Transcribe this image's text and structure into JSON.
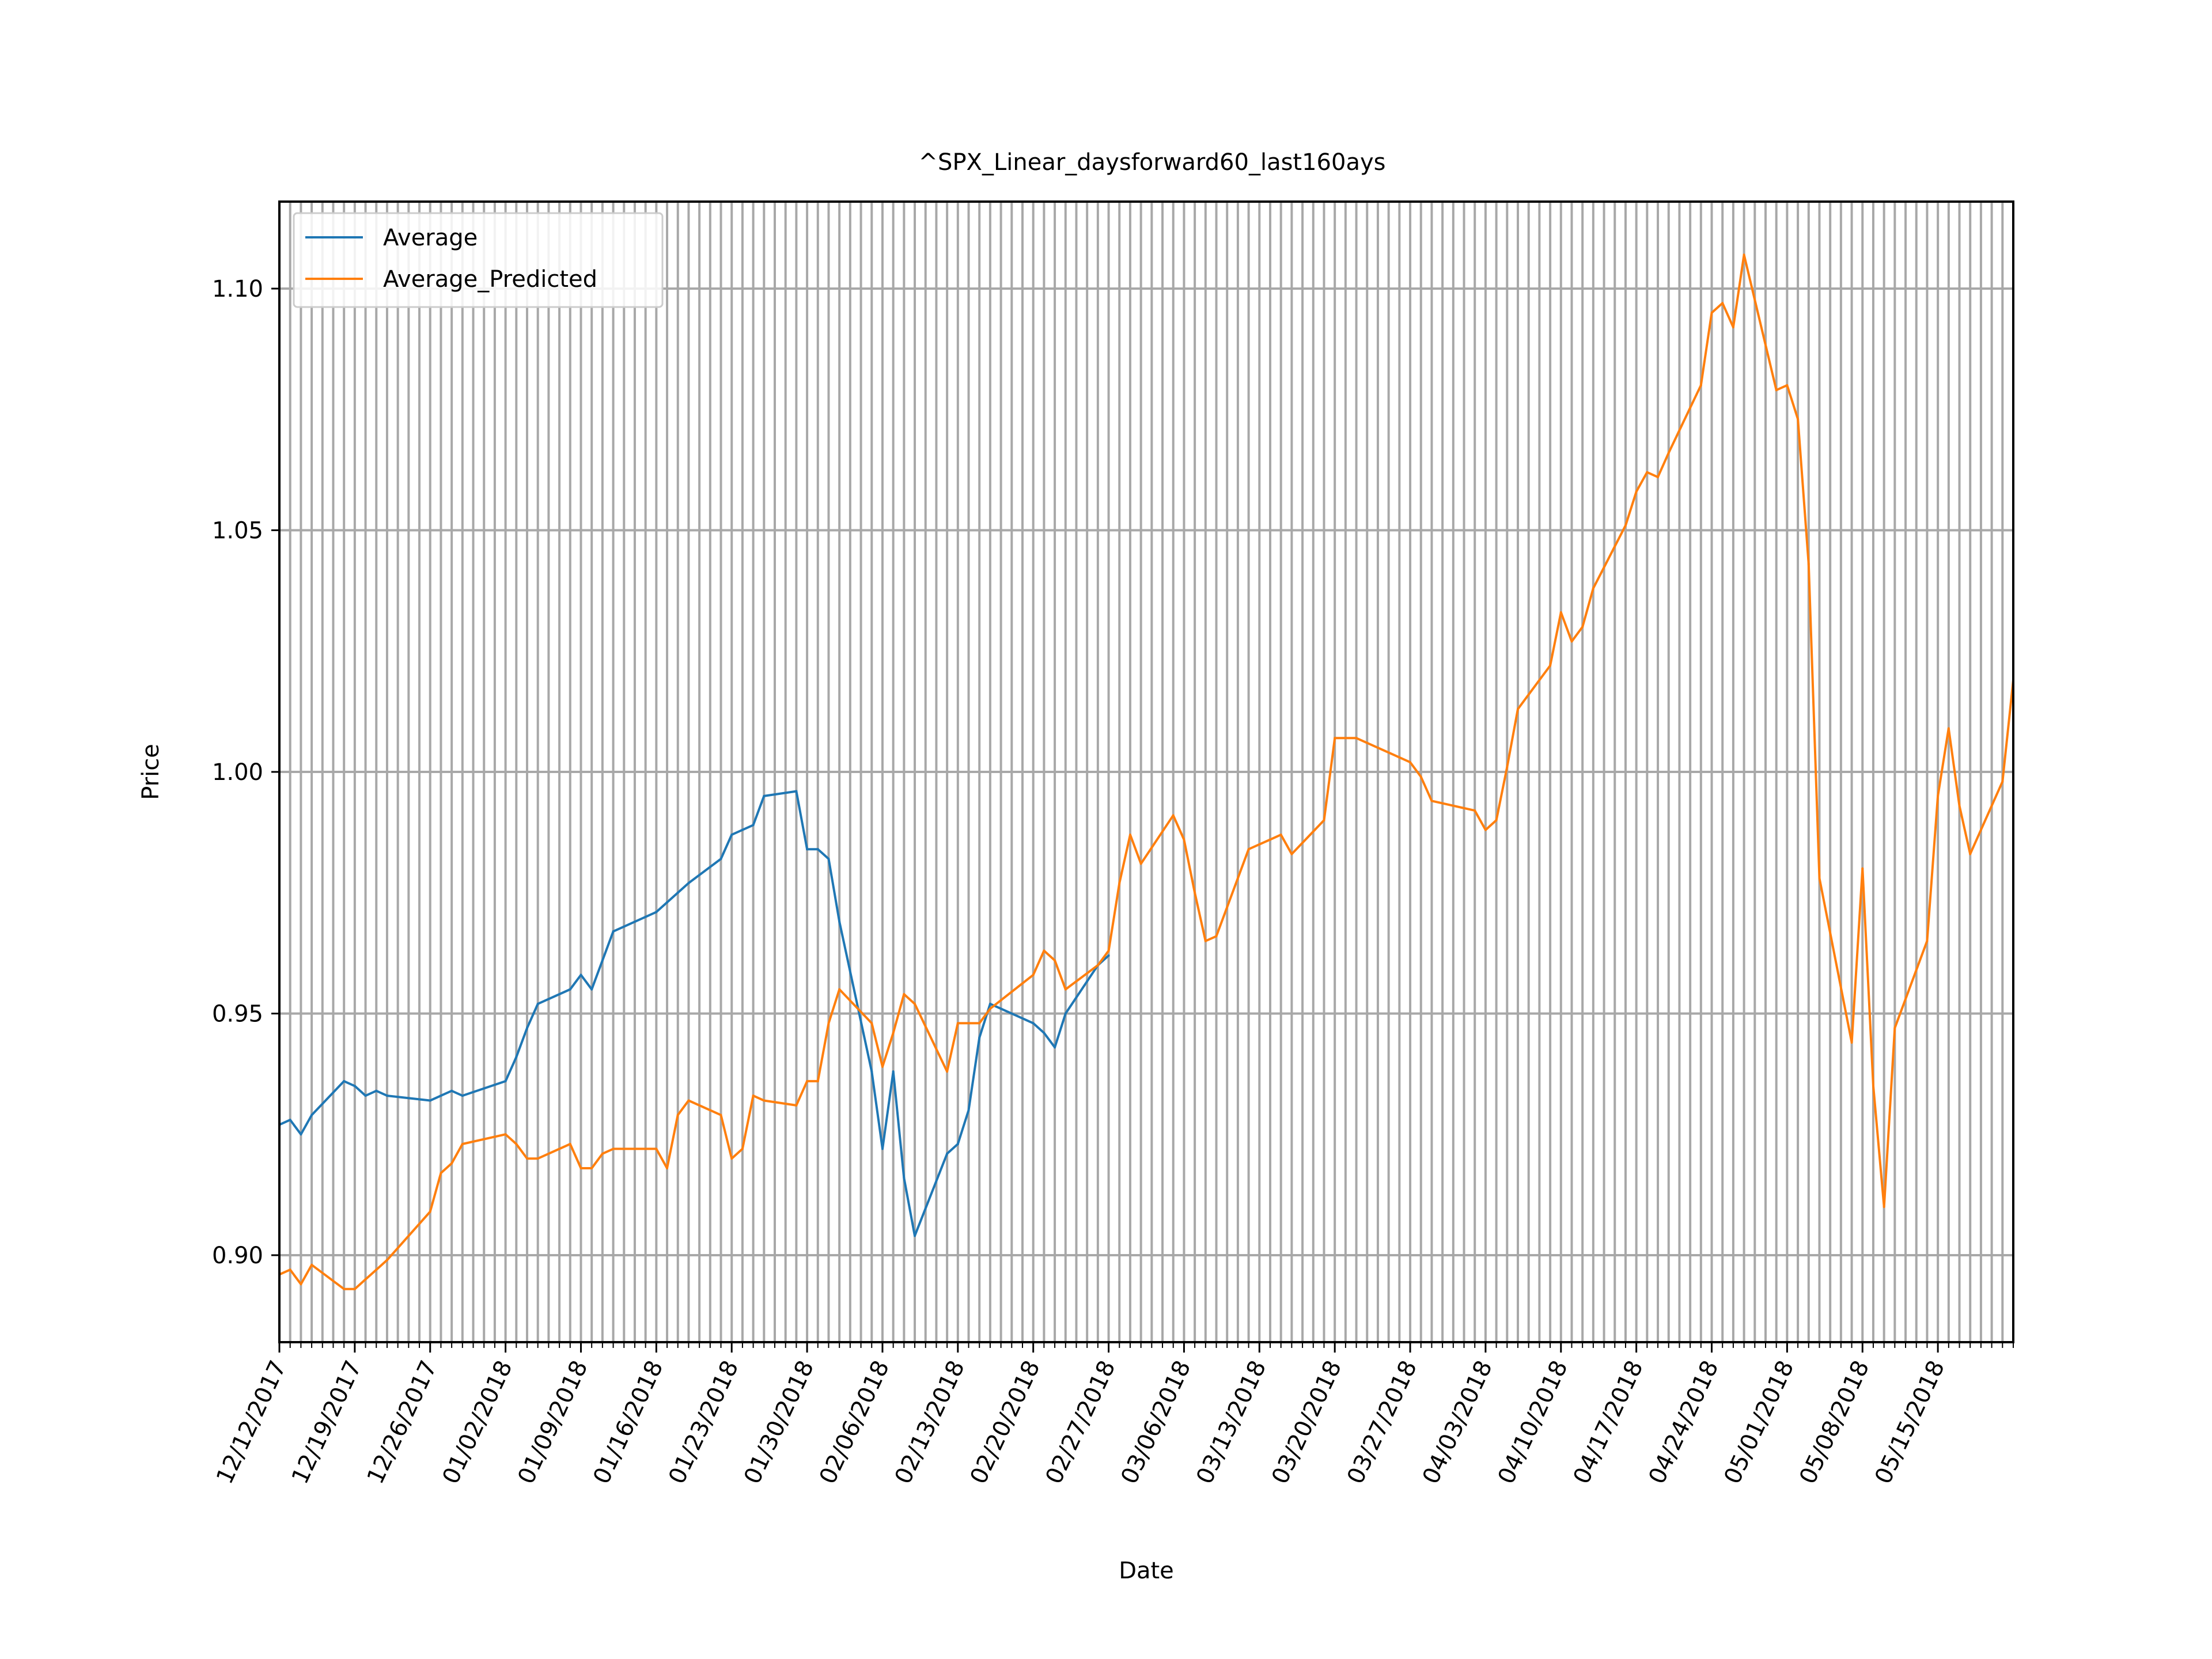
{
  "chart_data": {
    "type": "line",
    "title": "^SPX_Linear_daysforward60_last160ays",
    "xlabel": "Date",
    "ylabel": "Price",
    "x_range": [
      "12/12/2017",
      "05/22/2018"
    ],
    "ylim": [
      0.882,
      1.118
    ],
    "yticks": [
      0.9,
      0.95,
      1.0,
      1.05,
      1.1
    ],
    "ytick_labels": [
      "0.90",
      "0.95",
      "1.00",
      "1.05",
      "1.10"
    ],
    "xtick_labels": [
      "12/12/2017",
      "12/19/2017",
      "12/26/2017",
      "01/02/2018",
      "01/09/2018",
      "01/16/2018",
      "01/23/2018",
      "01/30/2018",
      "02/06/2018",
      "02/13/2018",
      "02/20/2018",
      "02/27/2018",
      "03/06/2018",
      "03/13/2018",
      "03/20/2018",
      "03/27/2018",
      "04/03/2018",
      "04/10/2018",
      "04/17/2018",
      "04/24/2018",
      "05/01/2018",
      "05/08/2018",
      "05/15/2018"
    ],
    "grid": "daily vertical minor lines and horizontal major lines",
    "legend_position": "top-left",
    "series": [
      {
        "name": "Average",
        "color": "#1f77b4",
        "points": [
          [
            "12/12/2017",
            0.927
          ],
          [
            "12/13/2017",
            0.928
          ],
          [
            "12/14/2017",
            0.925
          ],
          [
            "12/15/2017",
            0.929
          ],
          [
            "12/18/2017",
            0.936
          ],
          [
            "12/19/2017",
            0.935
          ],
          [
            "12/20/2017",
            0.933
          ],
          [
            "12/21/2017",
            0.934
          ],
          [
            "12/22/2017",
            0.933
          ],
          [
            "12/26/2017",
            0.932
          ],
          [
            "12/27/2017",
            0.933
          ],
          [
            "12/28/2017",
            0.934
          ],
          [
            "12/29/2017",
            0.933
          ],
          [
            "01/02/2018",
            0.936
          ],
          [
            "01/03/2018",
            0.941
          ],
          [
            "01/04/2018",
            0.947
          ],
          [
            "01/05/2018",
            0.952
          ],
          [
            "01/08/2018",
            0.955
          ],
          [
            "01/09/2018",
            0.958
          ],
          [
            "01/10/2018",
            0.955
          ],
          [
            "01/11/2018",
            0.961
          ],
          [
            "01/12/2018",
            0.967
          ],
          [
            "01/16/2018",
            0.971
          ],
          [
            "01/17/2018",
            0.973
          ],
          [
            "01/18/2018",
            0.975
          ],
          [
            "01/19/2018",
            0.977
          ],
          [
            "01/22/2018",
            0.982
          ],
          [
            "01/23/2018",
            0.987
          ],
          [
            "01/24/2018",
            0.988
          ],
          [
            "01/25/2018",
            0.989
          ],
          [
            "01/26/2018",
            0.995
          ],
          [
            "01/29/2018",
            0.996
          ],
          [
            "01/30/2018",
            0.984
          ],
          [
            "01/31/2018",
            0.984
          ],
          [
            "02/01/2018",
            0.982
          ],
          [
            "02/02/2018",
            0.969
          ],
          [
            "02/05/2018",
            0.938
          ],
          [
            "02/06/2018",
            0.922
          ],
          [
            "02/07/2018",
            0.938
          ],
          [
            "02/08/2018",
            0.916
          ],
          [
            "02/09/2018",
            0.904
          ],
          [
            "02/12/2018",
            0.921
          ],
          [
            "02/13/2018",
            0.923
          ],
          [
            "02/14/2018",
            0.93
          ],
          [
            "02/15/2018",
            0.945
          ],
          [
            "02/16/2018",
            0.952
          ],
          [
            "02/20/2018",
            0.948
          ],
          [
            "02/21/2018",
            0.946
          ],
          [
            "02/22/2018",
            0.943
          ],
          [
            "02/23/2018",
            0.95
          ],
          [
            "02/26/2018",
            0.96
          ],
          [
            "02/27/2018",
            0.962
          ]
        ]
      },
      {
        "name": "Average_Predicted",
        "color": "#ff7f0e",
        "points": [
          [
            "12/12/2017",
            0.896
          ],
          [
            "12/13/2017",
            0.897
          ],
          [
            "12/14/2017",
            0.894
          ],
          [
            "12/15/2017",
            0.898
          ],
          [
            "12/18/2017",
            0.893
          ],
          [
            "12/19/2017",
            0.893
          ],
          [
            "12/20/2017",
            0.895
          ],
          [
            "12/21/2017",
            0.897
          ],
          [
            "12/22/2017",
            0.899
          ],
          [
            "12/26/2017",
            0.909
          ],
          [
            "12/27/2017",
            0.917
          ],
          [
            "12/28/2017",
            0.919
          ],
          [
            "12/29/2017",
            0.923
          ],
          [
            "01/02/2018",
            0.925
          ],
          [
            "01/03/2018",
            0.923
          ],
          [
            "01/04/2018",
            0.92
          ],
          [
            "01/05/2018",
            0.92
          ],
          [
            "01/08/2018",
            0.923
          ],
          [
            "01/09/2018",
            0.918
          ],
          [
            "01/10/2018",
            0.918
          ],
          [
            "01/11/2018",
            0.921
          ],
          [
            "01/12/2018",
            0.922
          ],
          [
            "01/16/2018",
            0.922
          ],
          [
            "01/17/2018",
            0.918
          ],
          [
            "01/18/2018",
            0.929
          ],
          [
            "01/19/2018",
            0.932
          ],
          [
            "01/22/2018",
            0.929
          ],
          [
            "01/23/2018",
            0.92
          ],
          [
            "01/24/2018",
            0.922
          ],
          [
            "01/25/2018",
            0.933
          ],
          [
            "01/26/2018",
            0.932
          ],
          [
            "01/29/2018",
            0.931
          ],
          [
            "01/30/2018",
            0.936
          ],
          [
            "01/31/2018",
            0.936
          ],
          [
            "02/01/2018",
            0.948
          ],
          [
            "02/02/2018",
            0.955
          ],
          [
            "02/05/2018",
            0.948
          ],
          [
            "02/06/2018",
            0.939
          ],
          [
            "02/07/2018",
            0.946
          ],
          [
            "02/08/2018",
            0.954
          ],
          [
            "02/09/2018",
            0.952
          ],
          [
            "02/12/2018",
            0.938
          ],
          [
            "02/13/2018",
            0.948
          ],
          [
            "02/14/2018",
            0.948
          ],
          [
            "02/15/2018",
            0.948
          ],
          [
            "02/16/2018",
            0.951
          ],
          [
            "02/20/2018",
            0.958
          ],
          [
            "02/21/2018",
            0.963
          ],
          [
            "02/22/2018",
            0.961
          ],
          [
            "02/23/2018",
            0.955
          ],
          [
            "02/26/2018",
            0.96
          ],
          [
            "02/27/2018",
            0.963
          ],
          [
            "02/28/2018",
            0.977
          ],
          [
            "03/01/2018",
            0.987
          ],
          [
            "03/02/2018",
            0.981
          ],
          [
            "03/05/2018",
            0.991
          ],
          [
            "03/06/2018",
            0.986
          ],
          [
            "03/07/2018",
            0.975
          ],
          [
            "03/08/2018",
            0.965
          ],
          [
            "03/09/2018",
            0.966
          ],
          [
            "03/12/2018",
            0.984
          ],
          [
            "03/13/2018",
            0.985
          ],
          [
            "03/14/2018",
            0.986
          ],
          [
            "03/15/2018",
            0.987
          ],
          [
            "03/16/2018",
            0.983
          ],
          [
            "03/19/2018",
            0.99
          ],
          [
            "03/20/2018",
            1.007
          ],
          [
            "03/21/2018",
            1.007
          ],
          [
            "03/22/2018",
            1.007
          ],
          [
            "03/23/2018",
            1.006
          ],
          [
            "03/26/2018",
            1.003
          ],
          [
            "03/27/2018",
            1.002
          ],
          [
            "03/28/2018",
            0.999
          ],
          [
            "03/29/2018",
            0.994
          ],
          [
            "04/02/2018",
            0.992
          ],
          [
            "04/03/2018",
            0.988
          ],
          [
            "04/04/2018",
            0.99
          ],
          [
            "04/05/2018",
            1.001
          ],
          [
            "04/06/2018",
            1.013
          ],
          [
            "04/09/2018",
            1.022
          ],
          [
            "04/10/2018",
            1.033
          ],
          [
            "04/11/2018",
            1.027
          ],
          [
            "04/12/2018",
            1.03
          ],
          [
            "04/13/2018",
            1.038
          ],
          [
            "04/16/2018",
            1.051
          ],
          [
            "04/17/2018",
            1.058
          ],
          [
            "04/18/2018",
            1.062
          ],
          [
            "04/19/2018",
            1.061
          ],
          [
            "04/20/2018",
            1.066
          ],
          [
            "04/23/2018",
            1.08
          ],
          [
            "04/24/2018",
            1.095
          ],
          [
            "04/25/2018",
            1.097
          ],
          [
            "04/26/2018",
            1.092
          ],
          [
            "04/27/2018",
            1.107
          ],
          [
            "04/30/2018",
            1.079
          ],
          [
            "05/01/2018",
            1.08
          ],
          [
            "05/02/2018",
            1.073
          ],
          [
            "05/03/2018",
            1.043
          ],
          [
            "05/04/2018",
            0.978
          ],
          [
            "05/07/2018",
            0.944
          ],
          [
            "05/08/2018",
            0.98
          ],
          [
            "05/09/2018",
            0.935
          ],
          [
            "05/10/2018",
            0.91
          ],
          [
            "05/11/2018",
            0.947
          ],
          [
            "05/14/2018",
            0.965
          ],
          [
            "05/15/2018",
            0.995
          ],
          [
            "05/16/2018",
            1.009
          ],
          [
            "05/17/2018",
            0.993
          ],
          [
            "05/18/2018",
            0.983
          ],
          [
            "05/21/2018",
            0.998
          ],
          [
            "05/22/2018",
            1.019
          ]
        ]
      }
    ]
  }
}
